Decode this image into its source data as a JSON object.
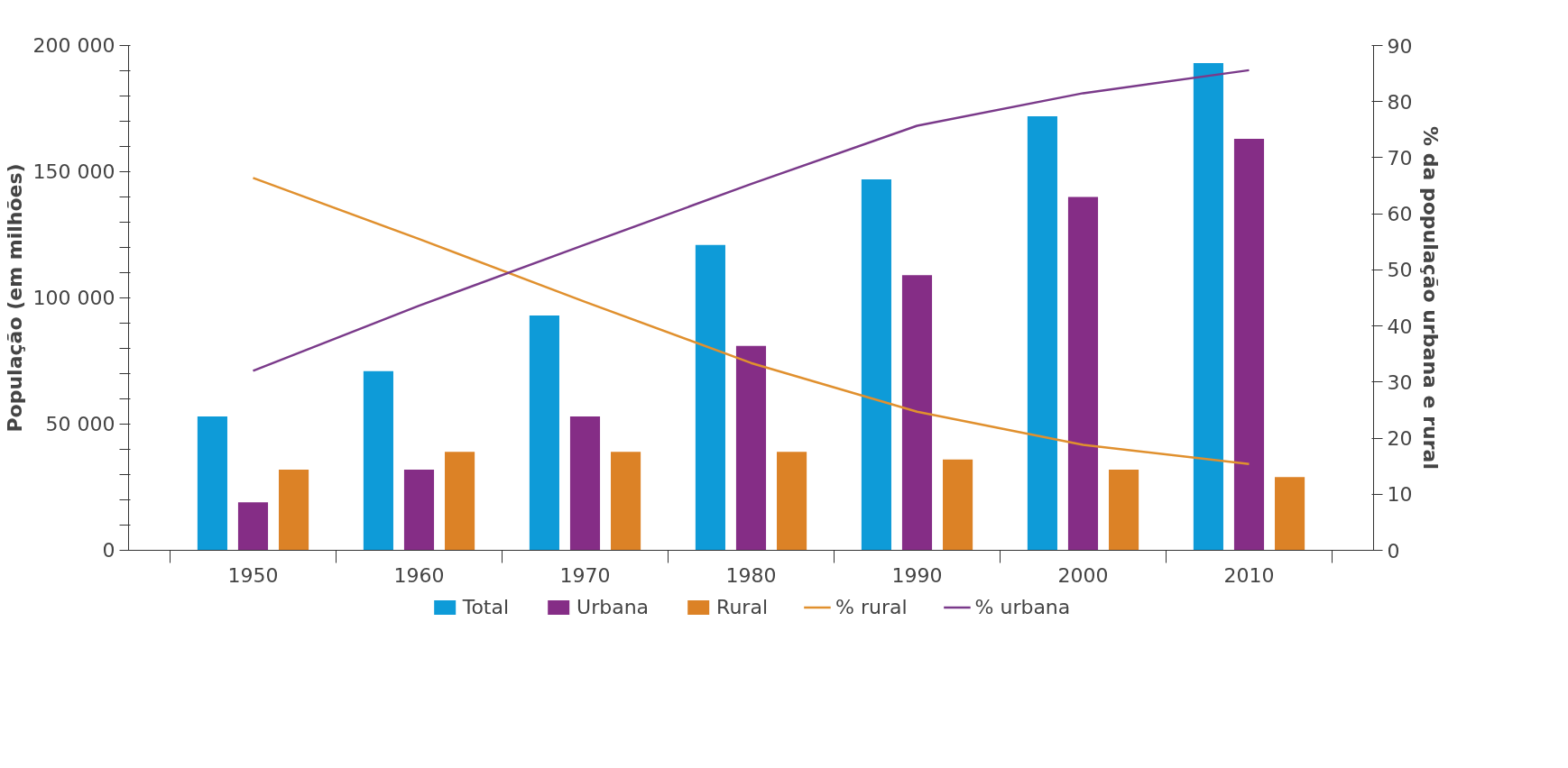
{
  "chart_data": {
    "type": "bar",
    "ylabel": "População (em milhões)",
    "y2label": "% da população urbana e rural",
    "categories": [
      "1950",
      "1960",
      "1970",
      "1980",
      "1990",
      "2000",
      "2010"
    ],
    "series": [
      {
        "name": "Total",
        "color": "#0e9bd8",
        "values": [
          53000,
          71000,
          93000,
          121000,
          147000,
          172000,
          193000
        ]
      },
      {
        "name": "Urbana",
        "color": "#852d86",
        "values": [
          19000,
          32000,
          53000,
          81000,
          109000,
          140000,
          163000
        ]
      },
      {
        "name": "Rural",
        "color": "#dc8226",
        "values": [
          32000,
          39000,
          39000,
          39000,
          36000,
          32000,
          29000
        ]
      },
      {
        "name": "% rural",
        "type": "line",
        "axis": "y2",
        "color": "#e0902e",
        "values": [
          66.4,
          55.5,
          44.3,
          33.4,
          24.7,
          18.8,
          15.4
        ]
      },
      {
        "name": "% urbana",
        "type": "line",
        "axis": "y2",
        "color": "#7a3a8a",
        "values": [
          32.0,
          43.6,
          54.5,
          65.3,
          75.7,
          81.5,
          85.6
        ]
      }
    ],
    "ylim": [
      0,
      200000
    ],
    "yticks": [
      {
        "value": 0,
        "label": "0"
      },
      {
        "value": 10000,
        "label": null
      },
      {
        "value": 20000,
        "label": null
      },
      {
        "value": 30000,
        "label": null
      },
      {
        "value": 40000,
        "label": null
      },
      {
        "value": 50000,
        "label": "50 000"
      },
      {
        "value": 60000,
        "label": null
      },
      {
        "value": 70000,
        "label": null
      },
      {
        "value": 80000,
        "label": null
      },
      {
        "value": 90000,
        "label": null
      },
      {
        "value": 100000,
        "label": "100 000"
      },
      {
        "value": 110000,
        "label": null
      },
      {
        "value": 120000,
        "label": null
      },
      {
        "value": 130000,
        "label": null
      },
      {
        "value": 140000,
        "label": null
      },
      {
        "value": 150000,
        "label": "150 000"
      },
      {
        "value": 160000,
        "label": null
      },
      {
        "value": 170000,
        "label": null
      },
      {
        "value": 180000,
        "label": null
      },
      {
        "value": 190000,
        "label": null
      },
      {
        "value": 200000,
        "label": "200 000"
      }
    ],
    "y2lim": [
      0,
      90
    ],
    "y2ticks": [
      0,
      10,
      20,
      30,
      40,
      50,
      60,
      70,
      80,
      90
    ],
    "grid": false,
    "legend": "bottom",
    "line_style": "solid",
    "marker": "none"
  }
}
